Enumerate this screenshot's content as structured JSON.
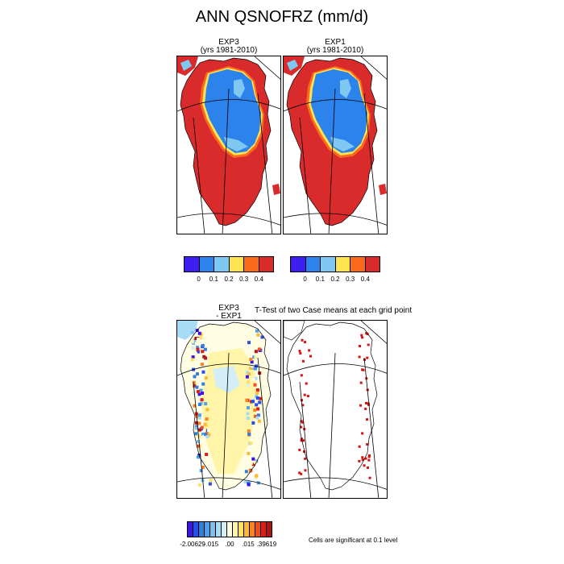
{
  "figure": {
    "title": "ANN QSNOFRZ (mm/d)",
    "ttest_title": "T-Test of two Case means at each grid point",
    "significance_note": "Cells are significant at 0.1 level"
  },
  "panels": {
    "exp3": {
      "title": "EXP3",
      "subtitle": "(yrs 1981-2010)"
    },
    "exp1": {
      "title": "EXP1",
      "subtitle": "(yrs 1981-2010)"
    },
    "diff": {
      "title": "EXP3",
      "subtitle": "- EXP1"
    }
  },
  "colorbar_top": {
    "colors": [
      "#3d1ff2",
      "#2b83eb",
      "#7ec8f2",
      "#fde34f",
      "#fb6a1c",
      "#d92b2b"
    ],
    "labels": [
      "0",
      "0.1",
      "0.2",
      "0.3",
      "0.4"
    ]
  },
  "colorbar_bottom": {
    "colors": [
      "#3c14e6",
      "#2a4ee8",
      "#2f7ee0",
      "#4f9fe8",
      "#7cc1ee",
      "#a8dcf5",
      "#d4eef8",
      "#fffee2",
      "#fff4a8",
      "#fee066",
      "#fdb833",
      "#f98324",
      "#ef4d1e",
      "#d91e1e",
      "#b01414"
    ],
    "labels": [
      "-2.00629",
      "-.015",
      ".00",
      ".015",
      ".39619"
    ]
  },
  "colors": {
    "land_red": "#d92b2b",
    "ice_blue": "#2b83eb",
    "light_blue": "#7ec8f2",
    "yellow": "#fde34f",
    "orange": "#fb6a1c",
    "pale_yellow": "#fff4a8",
    "sig_red": "#d51313"
  }
}
